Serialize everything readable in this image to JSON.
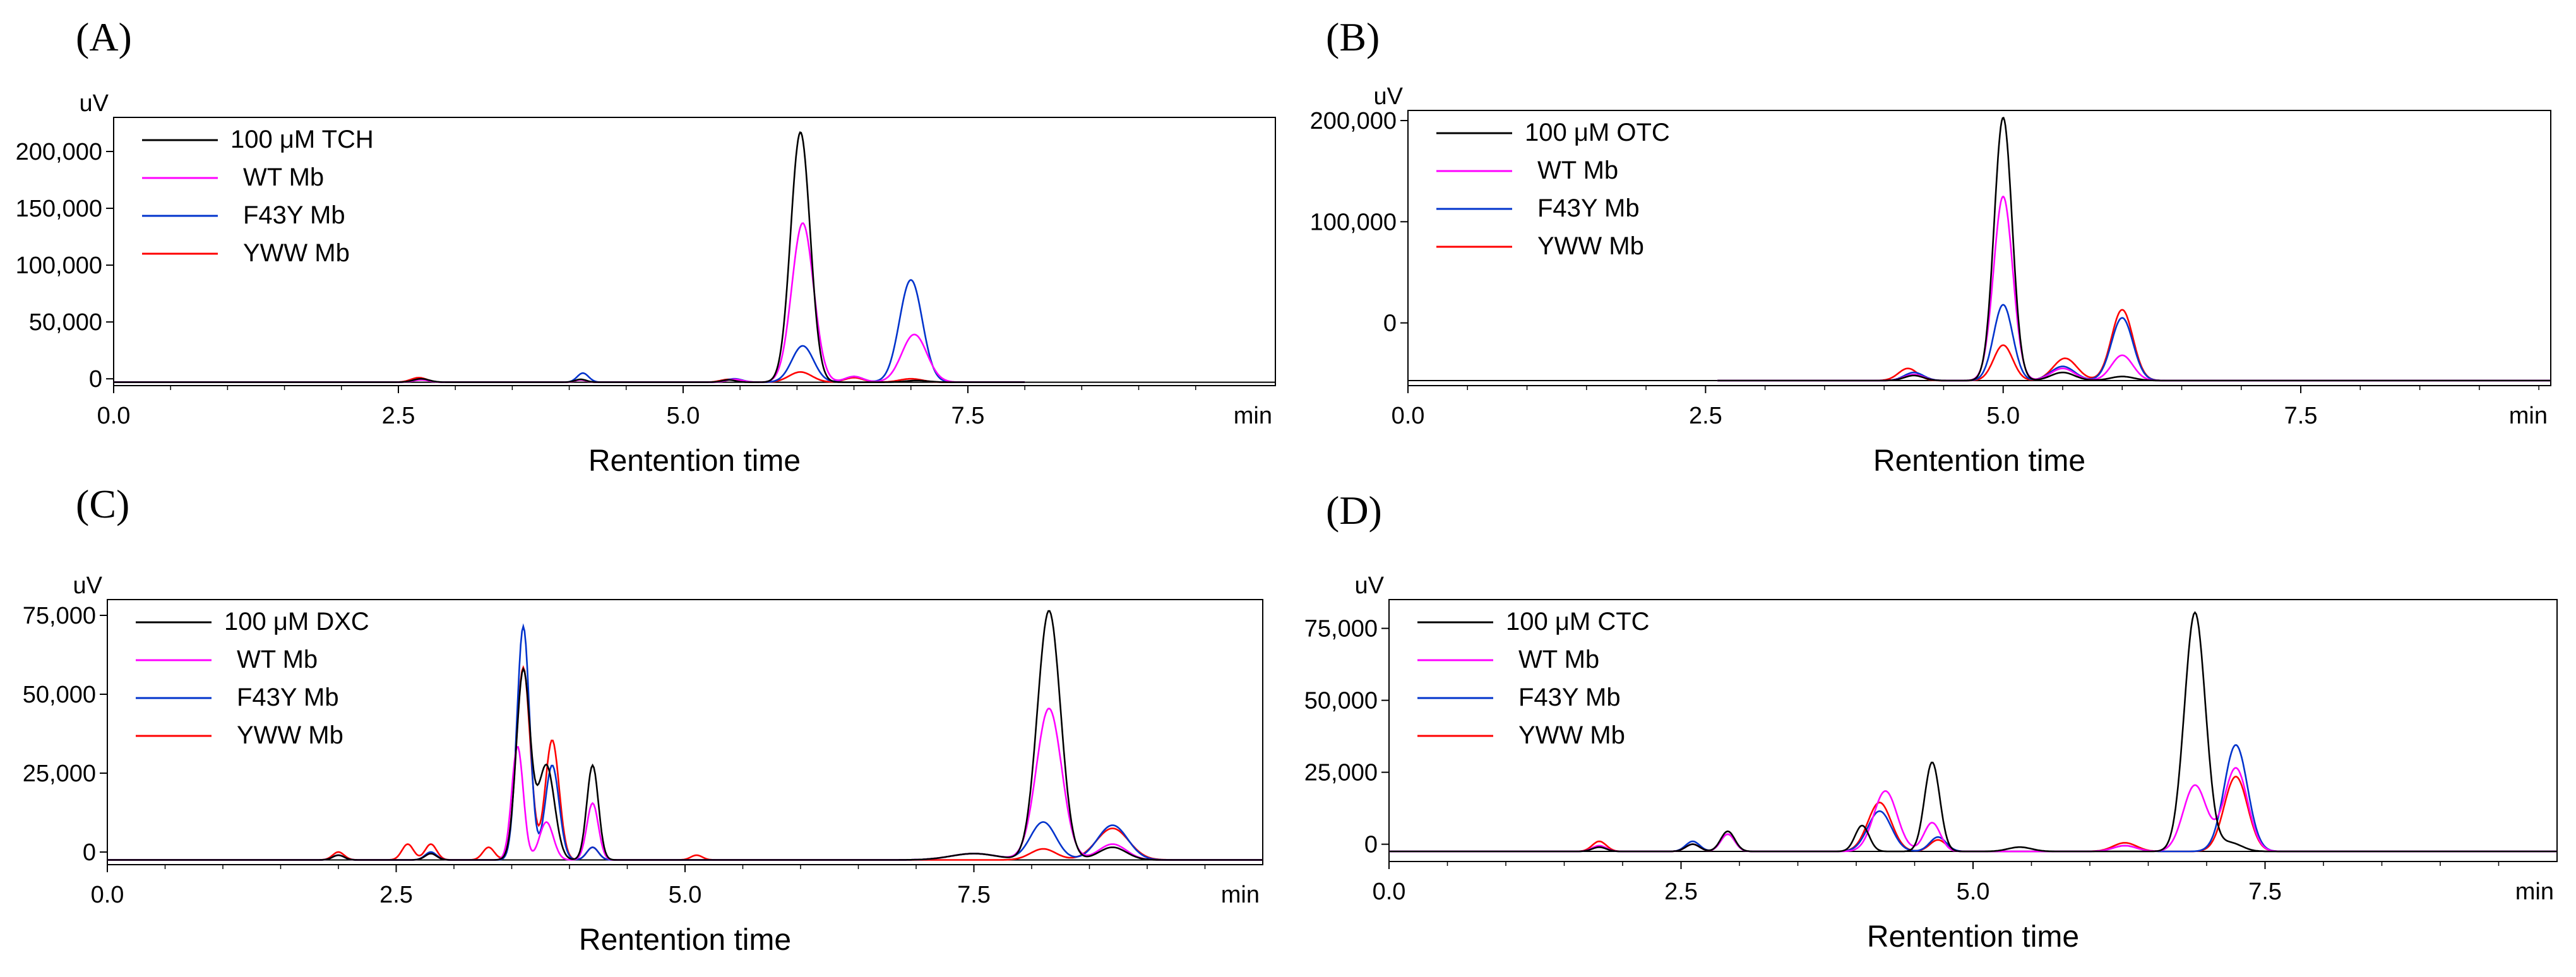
{
  "chart_data": [
    {
      "type": "line",
      "panel_label": "(A)",
      "y_unit_label": "uV",
      "x_unit_label": "min",
      "xlabel": "Rentention time",
      "xlim": [
        0,
        10.2
      ],
      "ylim": [
        -6000,
        230000
      ],
      "x_ticks": [
        0,
        2.5,
        5.0,
        7.5
      ],
      "x_tick_labels": [
        "0.0",
        "2.5",
        "5.0",
        "7.5"
      ],
      "y_ticks": [
        0,
        50000,
        100000,
        150000,
        200000
      ],
      "y_tick_labels": [
        "0",
        "50,000",
        "100,000",
        "150,000",
        "200,000"
      ],
      "legend": {
        "position": "top-left"
      },
      "baseline": -3000,
      "trace_range": [
        0,
        8.0
      ],
      "series": [
        {
          "name": "100 μM TCH",
          "color": "#000000",
          "peaks": [
            [
              2.7,
              3000,
              0.07
            ],
            [
              4.1,
              2500,
              0.05
            ],
            [
              5.4,
              2000,
              0.06
            ],
            [
              6.03,
              220000,
              0.085
            ],
            [
              7.05,
              1500,
              0.1
            ]
          ]
        },
        {
          "name": "WT Mb",
          "color": "#ff00ff",
          "peaks": [
            [
              2.7,
              2000,
              0.07
            ],
            [
              4.1,
              2000,
              0.05
            ],
            [
              5.45,
              2500,
              0.07
            ],
            [
              6.05,
              140000,
              0.095
            ],
            [
              6.5,
              5000,
              0.08
            ],
            [
              7.03,
              42000,
              0.11
            ]
          ]
        },
        {
          "name": "F43Y Mb",
          "color": "#0033cc",
          "peaks": [
            [
              2.7,
              2500,
              0.07
            ],
            [
              4.12,
              8000,
              0.05
            ],
            [
              5.45,
              3000,
              0.07
            ],
            [
              6.05,
              32000,
              0.095
            ],
            [
              6.5,
              5000,
              0.08
            ],
            [
              7.0,
              90000,
              0.1
            ]
          ]
        },
        {
          "name": "YWW Mb",
          "color": "#ff0000",
          "peaks": [
            [
              2.68,
              4000,
              0.07
            ],
            [
              4.1,
              2000,
              0.05
            ],
            [
              5.4,
              2500,
              0.07
            ],
            [
              6.03,
              9000,
              0.1
            ],
            [
              6.5,
              4000,
              0.08
            ],
            [
              7.0,
              3000,
              0.1
            ]
          ]
        }
      ]
    },
    {
      "type": "line",
      "panel_label": "(B)",
      "y_unit_label": "uV",
      "x_unit_label": "min",
      "xlabel": "Rentention time",
      "xlim": [
        0,
        9.6
      ],
      "ylim": [
        -62000,
        210000
      ],
      "x_ticks": [
        0,
        2.5,
        5.0,
        7.5
      ],
      "x_tick_labels": [
        "0.0",
        "2.5",
        "5.0",
        "7.5"
      ],
      "y_ticks": [
        0,
        100000,
        200000
      ],
      "y_tick_labels": [
        "0",
        "100,000",
        "200,000"
      ],
      "legend": {
        "position": "top-left"
      },
      "baseline": -57000,
      "trace_range": [
        2.6,
        9.6
      ],
      "series": [
        {
          "name": "100 μM OTC",
          "color": "#000000",
          "peaks": [
            [
              4.25,
              5000,
              0.08
            ],
            [
              5.0,
              260000,
              0.075
            ],
            [
              5.5,
              8000,
              0.1
            ],
            [
              6.0,
              4000,
              0.1
            ]
          ]
        },
        {
          "name": "WT Mb",
          "color": "#ff00ff",
          "peaks": [
            [
              4.25,
              6000,
              0.08
            ],
            [
              5.0,
              182000,
              0.08
            ],
            [
              5.5,
              12000,
              0.1
            ],
            [
              6.0,
              25000,
              0.09
            ]
          ]
        },
        {
          "name": "F43Y Mb",
          "color": "#0033cc",
          "peaks": [
            [
              4.25,
              8000,
              0.08
            ],
            [
              5.0,
              75000,
              0.08
            ],
            [
              5.5,
              14000,
              0.1
            ],
            [
              6.0,
              62000,
              0.09
            ]
          ]
        },
        {
          "name": "YWW Mb",
          "color": "#ff0000",
          "peaks": [
            [
              4.2,
              12000,
              0.08
            ],
            [
              5.0,
              35000,
              0.08
            ],
            [
              5.52,
              22000,
              0.1
            ],
            [
              6.0,
              70000,
              0.09
            ]
          ]
        }
      ]
    },
    {
      "type": "line",
      "panel_label": "(C)",
      "y_unit_label": "uV",
      "x_unit_label": "min",
      "xlabel": "Rentention time",
      "xlim": [
        0,
        10.0
      ],
      "ylim": [
        -4000,
        80000
      ],
      "x_ticks": [
        0,
        2.5,
        5.0,
        7.5
      ],
      "x_tick_labels": [
        "0.0",
        "2.5",
        "5.0",
        "7.5"
      ],
      "y_ticks": [
        0,
        25000,
        50000,
        75000
      ],
      "y_tick_labels": [
        "0",
        "25,000",
        "50,000",
        "75,000"
      ],
      "legend": {
        "position": "top-left"
      },
      "baseline": -2500,
      "trace_range": [
        0,
        10.0
      ],
      "series": [
        {
          "name": "100 μM DXC",
          "color": "#000000",
          "peaks": [
            [
              2.0,
              1500,
              0.05
            ],
            [
              2.8,
              2000,
              0.05
            ],
            [
              3.6,
              60000,
              0.06
            ],
            [
              3.8,
              30000,
              0.07
            ],
            [
              4.2,
              30000,
              0.05
            ],
            [
              7.5,
              2000,
              0.2
            ],
            [
              8.15,
              79000,
              0.1
            ],
            [
              8.7,
              4000,
              0.12
            ]
          ]
        },
        {
          "name": "WT Mb",
          "color": "#ff00ff",
          "peaks": [
            [
              2.0,
              1500,
              0.05
            ],
            [
              2.8,
              2000,
              0.05
            ],
            [
              3.55,
              36000,
              0.05
            ],
            [
              3.8,
              12000,
              0.06
            ],
            [
              4.2,
              18000,
              0.05
            ],
            [
              7.5,
              2000,
              0.2
            ],
            [
              8.15,
              48000,
              0.11
            ],
            [
              8.7,
              5000,
              0.12
            ]
          ]
        },
        {
          "name": "F43Y Mb",
          "color": "#0033cc",
          "peaks": [
            [
              2.0,
              1500,
              0.05
            ],
            [
              2.8,
              2500,
              0.05
            ],
            [
              3.6,
              74000,
              0.055
            ],
            [
              3.85,
              30000,
              0.06
            ],
            [
              4.2,
              4000,
              0.05
            ],
            [
              7.5,
              2000,
              0.2
            ],
            [
              8.1,
              12000,
              0.11
            ],
            [
              8.7,
              11000,
              0.13
            ]
          ]
        },
        {
          "name": "YWW Mb",
          "color": "#ff0000",
          "peaks": [
            [
              2.0,
              2500,
              0.05
            ],
            [
              2.6,
              5000,
              0.05
            ],
            [
              2.8,
              5000,
              0.05
            ],
            [
              3.3,
              4000,
              0.05
            ],
            [
              3.6,
              61000,
              0.06
            ],
            [
              3.85,
              38000,
              0.06
            ],
            [
              4.2,
              4000,
              0.05
            ],
            [
              5.1,
              1500,
              0.05
            ],
            [
              8.1,
              3500,
              0.11
            ],
            [
              8.7,
              10000,
              0.14
            ]
          ]
        }
      ]
    },
    {
      "type": "line",
      "panel_label": "(D)",
      "y_unit_label": "uV",
      "x_unit_label": "min",
      "xlabel": "Rentention time",
      "xlim": [
        0,
        10.0
      ],
      "ylim": [
        -6000,
        85000
      ],
      "x_ticks": [
        0,
        2.5,
        5.0,
        7.5
      ],
      "x_tick_labels": [
        "0.0",
        "2.5",
        "5.0",
        "7.5"
      ],
      "y_ticks": [
        0,
        25000,
        50000,
        75000
      ],
      "y_tick_labels": [
        "0",
        "25,000",
        "50,000",
        "75,000"
      ],
      "legend": {
        "position": "top-left"
      },
      "baseline": -2500,
      "trace_range": [
        0,
        10.0
      ],
      "series": [
        {
          "name": "100 μM CTC",
          "color": "#000000",
          "peaks": [
            [
              1.8,
              1500,
              0.06
            ],
            [
              2.6,
              2500,
              0.06
            ],
            [
              2.9,
              7000,
              0.06
            ],
            [
              4.05,
              9000,
              0.06
            ],
            [
              4.65,
              31000,
              0.065
            ],
            [
              5.4,
              1500,
              0.1
            ],
            [
              6.9,
              83000,
              0.09
            ],
            [
              7.2,
              3000,
              0.1
            ]
          ]
        },
        {
          "name": "WT Mb",
          "color": "#ff00ff",
          "peaks": [
            [
              1.8,
              2000,
              0.06
            ],
            [
              2.6,
              2500,
              0.06
            ],
            [
              2.9,
              6000,
              0.06
            ],
            [
              4.25,
              21000,
              0.1
            ],
            [
              4.65,
              10000,
              0.07
            ],
            [
              6.3,
              2000,
              0.1
            ],
            [
              6.9,
              23000,
              0.1
            ],
            [
              7.25,
              29000,
              0.1
            ]
          ]
        },
        {
          "name": "F43Y Mb",
          "color": "#0033cc",
          "peaks": [
            [
              1.8,
              1500,
              0.06
            ],
            [
              2.6,
              3500,
              0.06
            ],
            [
              2.9,
              6000,
              0.06
            ],
            [
              4.2,
              14000,
              0.1
            ],
            [
              4.7,
              5000,
              0.07
            ],
            [
              6.3,
              2000,
              0.1
            ],
            [
              7.25,
              37000,
              0.1
            ]
          ]
        },
        {
          "name": "YWW Mb",
          "color": "#ff0000",
          "peaks": [
            [
              1.8,
              3500,
              0.06
            ],
            [
              2.6,
              2500,
              0.06
            ],
            [
              2.9,
              6000,
              0.06
            ],
            [
              4.2,
              17000,
              0.1
            ],
            [
              4.7,
              4000,
              0.07
            ],
            [
              6.3,
              3000,
              0.1
            ],
            [
              7.25,
              26000,
              0.1
            ]
          ]
        }
      ]
    }
  ]
}
